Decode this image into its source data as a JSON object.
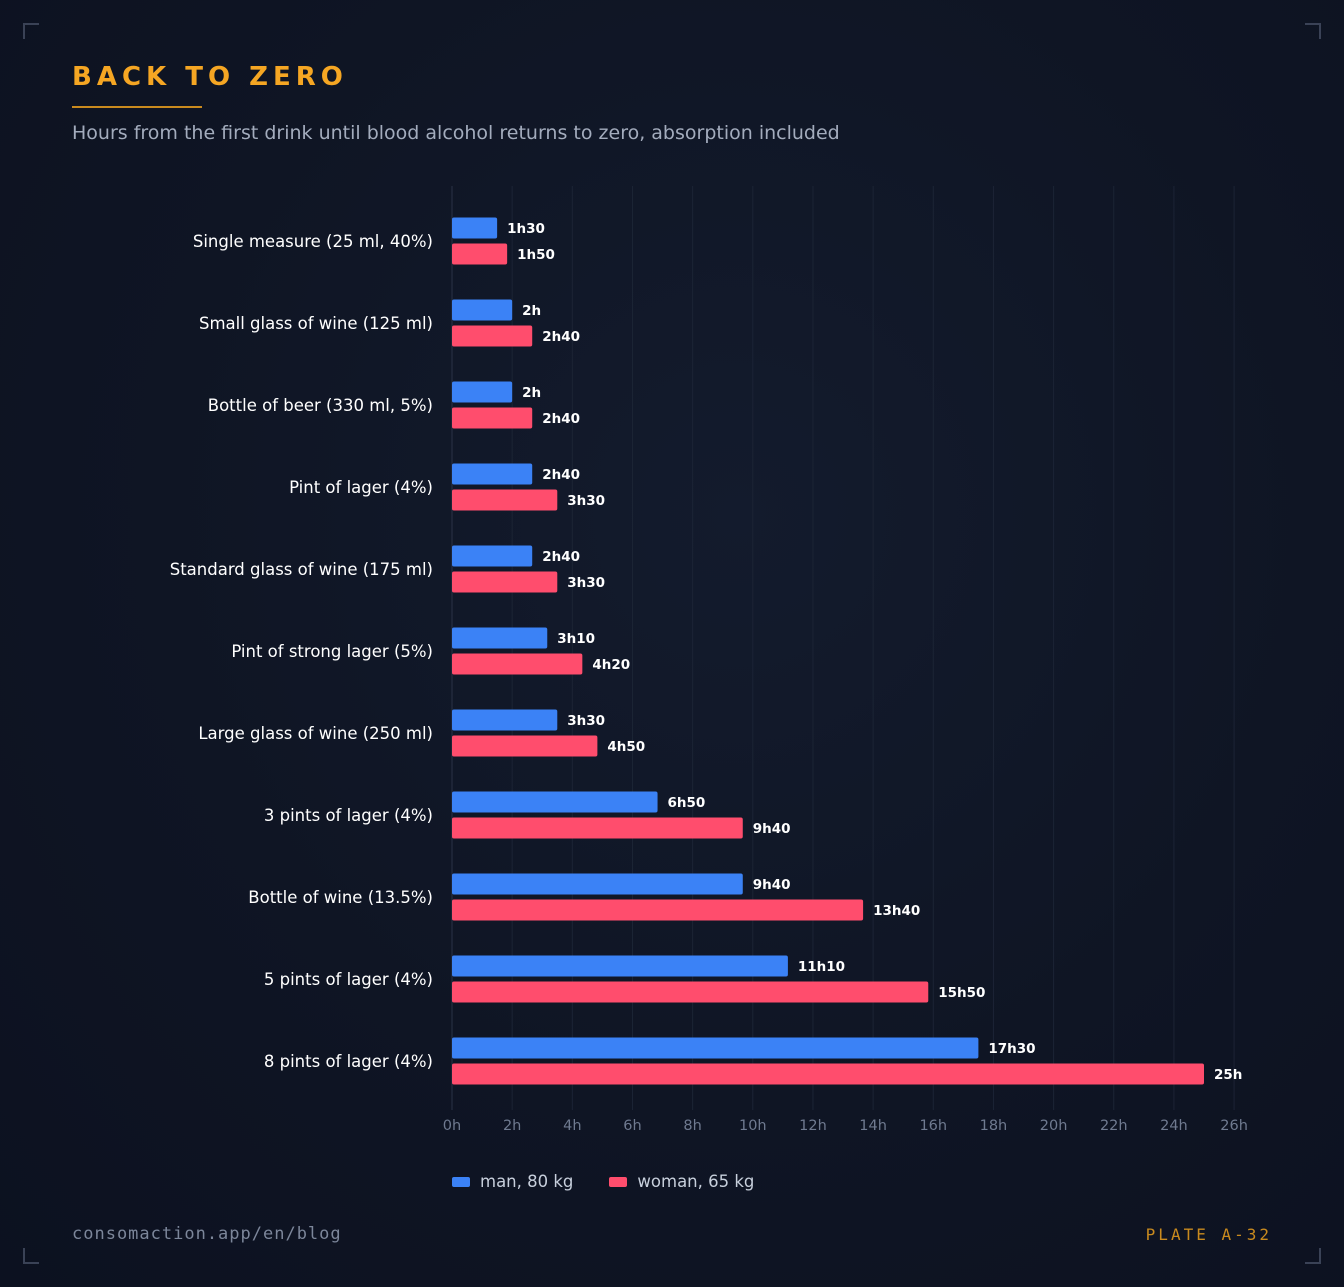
{
  "header": {
    "title": "BACK TO ZERO",
    "subtitle": "Hours from the first drink until blood alcohol returns to zero, absorption included"
  },
  "footer": {
    "source": "consomaction.app/en/blog",
    "plate": "PLATE A-32"
  },
  "colors": {
    "man": "#3b82f6",
    "woman": "#ff4d6d",
    "accent": "#f5a623"
  },
  "chart_data": {
    "type": "bar",
    "orientation": "horizontal",
    "categories": [
      "Single measure (25 ml, 40%)",
      "Small glass of wine (125 ml)",
      "Bottle of beer (330 ml, 5%)",
      "Pint of lager (4%)",
      "Standard glass of wine (175 ml)",
      "Pint of strong lager (5%)",
      "Large glass of wine (250 ml)",
      "3 pints of lager (4%)",
      "Bottle of wine (13.5%)",
      "5 pints of lager (4%)",
      "8 pints of lager (4%)"
    ],
    "series": [
      {
        "name": "man, 80 kg",
        "values": [
          1.5,
          2,
          2,
          2.6667,
          2.6667,
          3.1667,
          3.5,
          6.8333,
          9.6667,
          11.1667,
          17.5
        ],
        "labels": [
          "1h30",
          "2h",
          "2h",
          "2h40",
          "2h40",
          "3h10",
          "3h30",
          "6h50",
          "9h40",
          "11h10",
          "17h30"
        ]
      },
      {
        "name": "woman, 65 kg",
        "values": [
          1.8333,
          2.6667,
          2.6667,
          3.5,
          3.5,
          4.3333,
          4.8333,
          9.6667,
          13.6667,
          15.8333,
          25
        ],
        "labels": [
          "1h50",
          "2h40",
          "2h40",
          "3h30",
          "3h30",
          "4h20",
          "4h50",
          "9h40",
          "13h40",
          "15h50",
          "25h"
        ]
      }
    ],
    "xlim": [
      0,
      26
    ],
    "xticks": [
      0,
      2,
      4,
      6,
      8,
      10,
      12,
      14,
      16,
      18,
      20,
      22,
      24,
      26
    ],
    "xtick_labels": [
      "0h",
      "2h",
      "4h",
      "6h",
      "8h",
      "10h",
      "12h",
      "14h",
      "16h",
      "18h",
      "20h",
      "22h",
      "24h",
      "26h"
    ],
    "grid": true,
    "legend_position": "bottom-left"
  }
}
